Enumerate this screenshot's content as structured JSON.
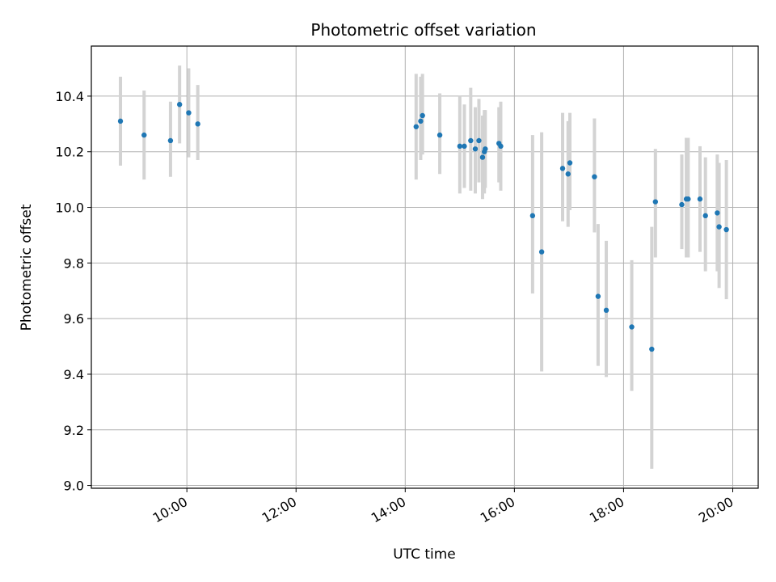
{
  "chart_data": {
    "type": "scatter",
    "title": "Photometric offset variation",
    "xlabel": "UTC time",
    "ylabel": "Photometric offset",
    "xlim": [
      "08:15",
      "20:28"
    ],
    "ylim": [
      8.99,
      10.58
    ],
    "grid": true,
    "x_ticks": [
      "10:00",
      "12:00",
      "14:00",
      "16:00",
      "18:00",
      "20:00"
    ],
    "y_ticks": [
      "9.0",
      "9.2",
      "9.4",
      "9.6",
      "9.8",
      "10.0",
      "10.2",
      "10.4"
    ],
    "colors": {
      "point": "#1f77b4",
      "errorbar": "#d3d3d3",
      "grid": "#b0b0b0"
    },
    "series": [
      {
        "points": [
          {
            "time": "08:47",
            "y": 10.31,
            "lo": 10.15,
            "hi": 10.47
          },
          {
            "time": "09:13",
            "y": 10.26,
            "lo": 10.1,
            "hi": 10.42
          },
          {
            "time": "09:42",
            "y": 10.24,
            "lo": 10.11,
            "hi": 10.38
          },
          {
            "time": "09:52",
            "y": 10.37,
            "lo": 10.23,
            "hi": 10.51
          },
          {
            "time": "10:02",
            "y": 10.34,
            "lo": 10.18,
            "hi": 10.5
          },
          {
            "time": "10:12",
            "y": 10.3,
            "lo": 10.17,
            "hi": 10.44
          },
          {
            "time": "14:12",
            "y": 10.29,
            "lo": 10.1,
            "hi": 10.48
          },
          {
            "time": "14:17",
            "y": 10.31,
            "lo": 10.17,
            "hi": 10.47
          },
          {
            "time": "14:19",
            "y": 10.33,
            "lo": 10.19,
            "hi": 10.48
          },
          {
            "time": "14:38",
            "y": 10.26,
            "lo": 10.12,
            "hi": 10.41
          },
          {
            "time": "15:00",
            "y": 10.22,
            "lo": 10.05,
            "hi": 10.4
          },
          {
            "time": "15:05",
            "y": 10.22,
            "lo": 10.07,
            "hi": 10.37
          },
          {
            "time": "15:12",
            "y": 10.24,
            "lo": 10.06,
            "hi": 10.43
          },
          {
            "time": "15:17",
            "y": 10.21,
            "lo": 10.05,
            "hi": 10.36
          },
          {
            "time": "15:21",
            "y": 10.24,
            "lo": 10.09,
            "hi": 10.39
          },
          {
            "time": "15:25",
            "y": 10.18,
            "lo": 10.03,
            "hi": 10.33
          },
          {
            "time": "15:27",
            "y": 10.2,
            "lo": 10.05,
            "hi": 10.35
          },
          {
            "time": "15:28",
            "y": 10.21,
            "lo": 10.07,
            "hi": 10.35
          },
          {
            "time": "15:43",
            "y": 10.23,
            "lo": 10.09,
            "hi": 10.36
          },
          {
            "time": "15:45",
            "y": 10.22,
            "lo": 10.06,
            "hi": 10.38
          },
          {
            "time": "16:20",
            "y": 9.97,
            "lo": 9.69,
            "hi": 10.26
          },
          {
            "time": "16:30",
            "y": 9.84,
            "lo": 9.41,
            "hi": 10.27
          },
          {
            "time": "16:53",
            "y": 10.14,
            "lo": 9.95,
            "hi": 10.34
          },
          {
            "time": "16:59",
            "y": 10.12,
            "lo": 9.93,
            "hi": 10.31
          },
          {
            "time": "17:01",
            "y": 10.16,
            "lo": 9.99,
            "hi": 10.34
          },
          {
            "time": "17:28",
            "y": 10.11,
            "lo": 9.91,
            "hi": 10.32
          },
          {
            "time": "17:32",
            "y": 9.68,
            "lo": 9.43,
            "hi": 9.94
          },
          {
            "time": "17:41",
            "y": 9.63,
            "lo": 9.39,
            "hi": 9.88
          },
          {
            "time": "18:09",
            "y": 9.57,
            "lo": 9.34,
            "hi": 9.81
          },
          {
            "time": "18:31",
            "y": 9.49,
            "lo": 9.06,
            "hi": 9.93
          },
          {
            "time": "18:35",
            "y": 10.02,
            "lo": 9.82,
            "hi": 10.21
          },
          {
            "time": "19:04",
            "y": 10.01,
            "lo": 9.85,
            "hi": 10.19
          },
          {
            "time": "19:09",
            "y": 10.03,
            "lo": 9.82,
            "hi": 10.25
          },
          {
            "time": "19:11",
            "y": 10.03,
            "lo": 9.82,
            "hi": 10.25
          },
          {
            "time": "19:24",
            "y": 10.03,
            "lo": 9.84,
            "hi": 10.22
          },
          {
            "time": "19:30",
            "y": 9.97,
            "lo": 9.77,
            "hi": 10.18
          },
          {
            "time": "19:43",
            "y": 9.98,
            "lo": 9.77,
            "hi": 10.19
          },
          {
            "time": "19:45",
            "y": 9.93,
            "lo": 9.71,
            "hi": 10.16
          },
          {
            "time": "19:53",
            "y": 9.92,
            "lo": 9.67,
            "hi": 10.17
          }
        ]
      }
    ]
  }
}
